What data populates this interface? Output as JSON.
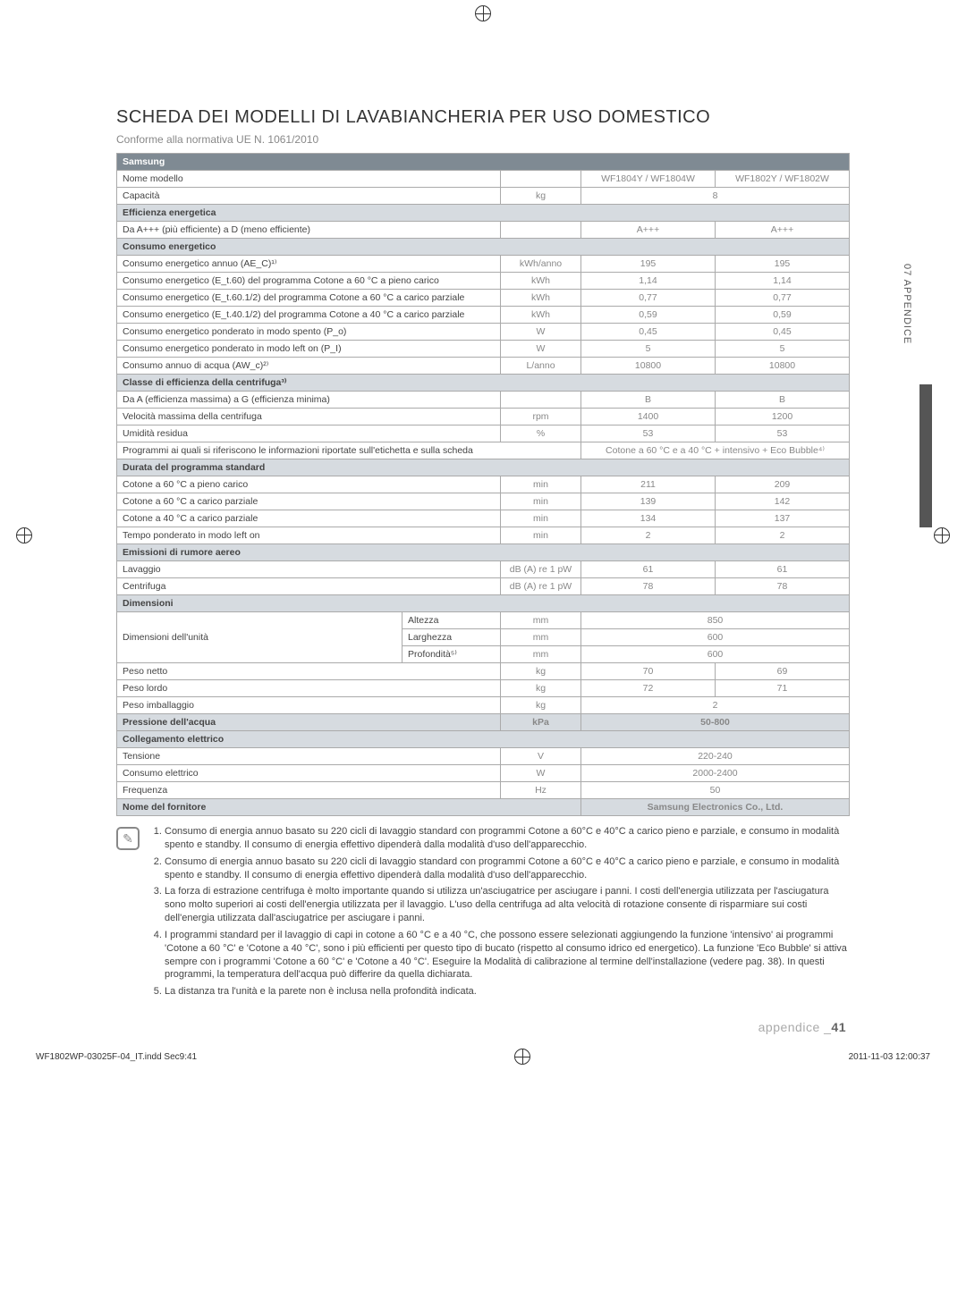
{
  "page": {
    "title": "SCHEDA DEI MODELLI DI LAVABIANCHERIA PER USO DOMESTICO",
    "subtitle": "Conforme alla normativa UE N. 1061/2010",
    "side_tab": "07 APPENDICE",
    "footer_label": "appendice _",
    "footer_number": "41",
    "print_file": "WF1802WP-03025F-04_IT.indd   Sec9:41",
    "print_time": "2011-11-03    12:00:37"
  },
  "table": {
    "brand": "Samsung",
    "rows": [
      {
        "label": "Nome modello",
        "unit": "",
        "v1": "WF1804Y / WF1804W",
        "v2": "WF1802Y / WF1802W"
      },
      {
        "label": "Capacità",
        "unit": "kg",
        "merged": "8"
      },
      {
        "section": "Efficienza energetica"
      },
      {
        "label": "Da A+++ (più efficiente) a D (meno efficiente)",
        "unit": "",
        "v1": "A+++",
        "v2": "A+++"
      },
      {
        "section": "Consumo energetico"
      },
      {
        "label": "Consumo energetico annuo (AE_C)¹⁾",
        "unit": "kWh/anno",
        "v1": "195",
        "v2": "195"
      },
      {
        "label": "Consumo energetico (E_t.60) del programma Cotone a 60 °C a pieno carico",
        "unit": "kWh",
        "v1": "1,14",
        "v2": "1,14"
      },
      {
        "label": "Consumo energetico (E_t.60.1/2) del programma Cotone a 60 °C a carico parziale",
        "unit": "kWh",
        "v1": "0,77",
        "v2": "0,77"
      },
      {
        "label": "Consumo energetico (E_t.40.1/2) del programma Cotone a 40 °C a carico parziale",
        "unit": "kWh",
        "v1": "0,59",
        "v2": "0,59"
      },
      {
        "label": "Consumo energetico ponderato in modo spento (P_o)",
        "unit": "W",
        "v1": "0,45",
        "v2": "0,45"
      },
      {
        "label": "Consumo energetico ponderato in modo left on (P_I)",
        "unit": "W",
        "v1": "5",
        "v2": "5"
      },
      {
        "label": "Consumo annuo di acqua (AW_c)²⁾",
        "unit": "L/anno",
        "v1": "10800",
        "v2": "10800"
      },
      {
        "section": "Classe di efficienza della centrifuga³⁾"
      },
      {
        "label": "Da A (efficienza massima) a G (efficienza minima)",
        "unit": "",
        "v1": "B",
        "v2": "B"
      },
      {
        "label": "Velocità massima della centrifuga",
        "unit": "rpm",
        "v1": "1400",
        "v2": "1200"
      },
      {
        "label": "Umidità residua",
        "unit": "%",
        "v1": "53",
        "v2": "53"
      },
      {
        "label": "Programmi ai quali si riferiscono le informazioni riportate sull'etichetta e sulla scheda",
        "wide": true,
        "merged": "Cotone a 60 °C e a 40 °C + intensivo + Eco Bubble⁴⁾"
      },
      {
        "section": "Durata del programma standard"
      },
      {
        "label": "Cotone a 60 °C a pieno carico",
        "unit": "min",
        "v1": "211",
        "v2": "209"
      },
      {
        "label": "Cotone a 60 °C a carico parziale",
        "unit": "min",
        "v1": "139",
        "v2": "142"
      },
      {
        "label": "Cotone a 40 °C a carico parziale",
        "unit": "min",
        "v1": "134",
        "v2": "137"
      },
      {
        "label": "Tempo ponderato in modo left on",
        "unit": "min",
        "v1": "2",
        "v2": "2"
      },
      {
        "section": "Emissioni di rumore aereo"
      },
      {
        "label": "Lavaggio",
        "unit": "dB (A) re 1 pW",
        "v1": "61",
        "v2": "61"
      },
      {
        "label": "Centrifuga",
        "unit": "dB (A) re 1 pW",
        "v1": "78",
        "v2": "78"
      },
      {
        "section": "Dimensioni"
      }
    ],
    "dimensions": {
      "group": "Dimensioni dell'unità",
      "items": [
        {
          "sub": "Altezza",
          "unit": "mm",
          "merged": "850"
        },
        {
          "sub": "Larghezza",
          "unit": "mm",
          "merged": "600"
        },
        {
          "sub": "Profondità⁵⁾",
          "unit": "mm",
          "merged": "600"
        }
      ]
    },
    "tail": [
      {
        "label": "Peso netto",
        "unit": "kg",
        "v1": "70",
        "v2": "69"
      },
      {
        "label": "Peso lordo",
        "unit": "kg",
        "v1": "72",
        "v2": "71"
      },
      {
        "label": "Peso imballaggio",
        "unit": "kg",
        "merged": "2"
      },
      {
        "label": "Pressione dell'acqua",
        "unit": "kPa",
        "merged": "50-800",
        "section_bg": true
      },
      {
        "section": "Collegamento elettrico"
      },
      {
        "label": "Tensione",
        "unit": "V",
        "merged": "220-240"
      },
      {
        "label": "Consumo elettrico",
        "unit": "W",
        "merged": "2000-2400"
      },
      {
        "label": "Frequenza",
        "unit": "Hz",
        "merged": "50"
      },
      {
        "label": "Nome del fornitore",
        "unit": "",
        "merged": "Samsung Electronics Co., Ltd.",
        "section_bg": true,
        "wide": true
      }
    ]
  },
  "footnotes": [
    "Consumo di energia annuo basato su 220 cicli di lavaggio standard con programmi Cotone a 60°C e 40°C a carico pieno e parziale, e consumo in modalità spento e standby. Il consumo di energia effettivo dipenderà dalla modalità d'uso dell'apparecchio.",
    "Consumo di energia annuo basato su 220 cicli di lavaggio standard con programmi Cotone a 60°C e 40°C a carico pieno e parziale, e consumo in modalità spento e standby. Il consumo di energia effettivo dipenderà dalla modalità d'uso dell'apparecchio.",
    "La forza di estrazione centrifuga è molto importante quando si utilizza un'asciugatrice per asciugare i panni. I costi dell'energia utilizzata per l'asciugatura sono molto superiori ai costi dell'energia utilizzata per il lavaggio. L'uso della centrifuga ad alta velocità di rotazione consente di risparmiare sui costi dell'energia utilizzata dall'asciugatrice per asciugare i panni.",
    "I programmi standard per il lavaggio di capi in cotone a 60 °C e a 40 °C, che possono essere selezionati aggiungendo la funzione 'intensivo' ai programmi 'Cotone a 60 °C' e 'Cotone a 40 °C', sono i più efficienti per questo tipo di bucato (rispetto al consumo idrico ed energetico). La funzione 'Eco Bubble' si attiva sempre con i programmi 'Cotone a 60 °C' e 'Cotone a 40 °C'. Eseguire la Modalità di calibrazione al termine dell'installazione (vedere pag. 38). In questi programmi, la temperatura dell'acqua può differire da quella dichiarata.",
    "La distanza tra l'unità e la parete non è inclusa nella profondità indicata."
  ]
}
